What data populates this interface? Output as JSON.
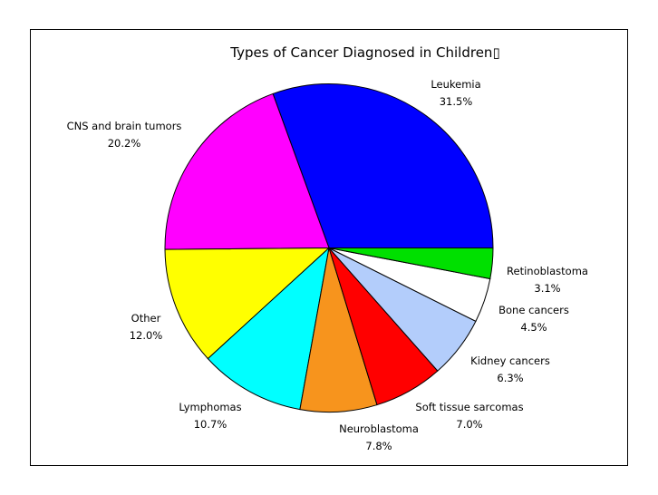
{
  "chart_data": {
    "type": "pie",
    "title": "Types of Cancer Diagnosed in Children▯",
    "start_angle_deg": 0,
    "direction": "counterclockwise",
    "slices": [
      {
        "label": "Leukemia",
        "value": 31.5,
        "display": "31.5%",
        "color": "#0000ff"
      },
      {
        "label": "CNS and brain tumors",
        "value": 20.2,
        "display": "20.2%",
        "color": "#ff00ff"
      },
      {
        "label": "Other",
        "value": 12.0,
        "display": "12.0%",
        "color": "#ffff00"
      },
      {
        "label": "Lymphomas",
        "value": 10.7,
        "display": "10.7%",
        "color": "#00ffff"
      },
      {
        "label": "Neuroblastoma",
        "value": 7.8,
        "display": "7.8%",
        "color": "#f7941d"
      },
      {
        "label": "Soft tissue sarcomas",
        "value": 7.0,
        "display": "7.0%",
        "color": "#ff0000"
      },
      {
        "label": "Kidney cancers",
        "value": 6.3,
        "display": "6.3%",
        "color": "#b3cdfb"
      },
      {
        "label": "Bone cancers",
        "value": 4.5,
        "display": "4.5%",
        "color": "#ffffff"
      },
      {
        "label": "Retinoblastoma",
        "value": 3.1,
        "display": "3.1%",
        "color": "#00e000"
      }
    ]
  }
}
